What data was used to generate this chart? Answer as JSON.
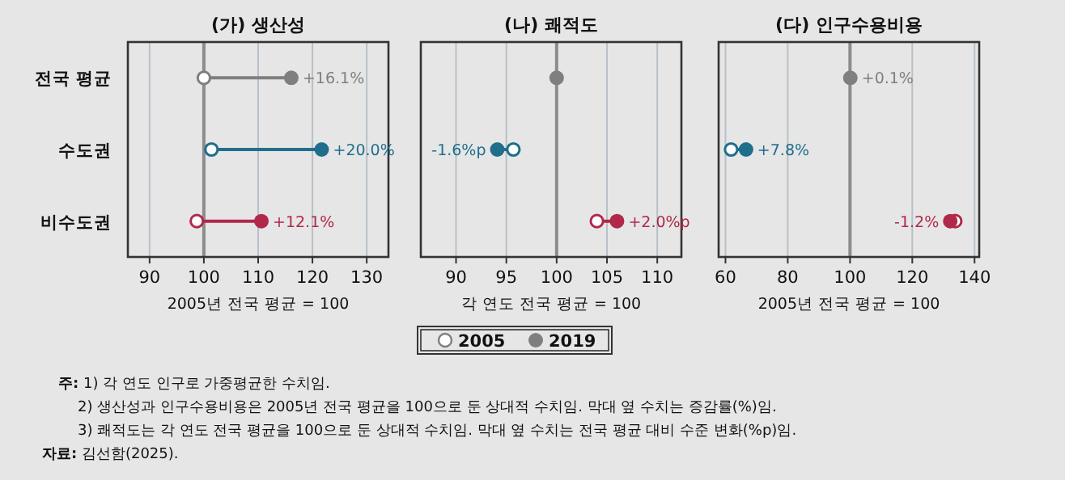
{
  "chart_data": [
    {
      "type": "scatter",
      "orientation": "horizontal",
      "title": "(가) 생산성",
      "xlabel": "2005년 전국 평균 = 100",
      "categories": [
        "전국 평균",
        "수도권",
        "비수도권"
      ],
      "xlim": [
        86,
        134
      ],
      "xticks": [
        90,
        100,
        110,
        120,
        130
      ],
      "grid": "x",
      "ref_lines": [
        {
          "axis": "x",
          "value": 100,
          "color": "#8c8c8c"
        }
      ],
      "series": [
        {
          "marker": "circle",
          "colors": [
            "#7f7f7f",
            "#1f6e8c",
            "#b0284a"
          ],
          "values": [
            100,
            101.4,
            98.7
          ]
        },
        {
          "marker": "circle",
          "colors": [
            "#7f7f7f",
            "#1f6e8c",
            "#b0284a"
          ],
          "values": [
            116.1,
            121.7,
            110.6
          ]
        }
      ],
      "annotations": [
        {
          "text": "+16.1%",
          "x": 116.1,
          "y": "전국 평균"
        },
        {
          "text": "+20.0%",
          "x": 121.7,
          "y": "수도권"
        },
        {
          "text": "+12.1%",
          "x": 110.6,
          "y": "비수도권"
        },
        "**주:** 1) 각 연도 인구로 가중평균한 수치임.",
        "2) 생산성과 인구수용비용은 2005년 전국 평균을 100으로 둔 상대적 수치임. 막대 옆 수치는 증감률(%)임.",
        "3) 쾌적도는 각 연도 전국 평균을 100으로 둔 상대적 수치임. 막대 옆 수치는 전국 평균 대비 수준 변화(%p)임.",
        "**자료:** 김선함(2025)."
      ]
    },
    {
      "type": "scatter",
      "orientation": "horizontal",
      "title": "(나) 쾌적도",
      "xlabel": "각 연도 전국 평균 = 100",
      "categories": [
        "전국 평균",
        "수도권",
        "비수도권"
      ],
      "xlim": [
        86.5,
        112.4
      ],
      "xticks": [
        90,
        95,
        100,
        105,
        110
      ],
      "grid": "x",
      "tick_labels": "x",
      "legend": "bottom",
      "ref_lines": [
        {
          "axis": "x",
          "value": 100,
          "color": "#8c8c8c"
        }
      ],
      "series": [
        {
          "name": "2005",
          "marker": "circle",
          "colors": [
            "#7f7f7f",
            "#1f6e8c",
            "#b0284a"
          ],
          "values": [
            null,
            95.7,
            104.0
          ]
        },
        {
          "name": "2019",
          "marker": "circle",
          "colors": [
            "#7f7f7f",
            "#1f6e8c",
            "#b0284a"
          ],
          "values": [
            100,
            94.1,
            106.0
          ]
        }
      ],
      "annotations": [
        {
          "text": "-1.6%p",
          "x": 94.1,
          "y": "수도권"
        },
        {
          "text": "+2.0%p",
          "x": 106.0,
          "y": "비수도권"
        }
      ]
    },
    {
      "type": "scatter",
      "orientation": "horizontal",
      "title": "(다) 인구수용비용",
      "xlabel": "2005년 전국 평균 = 100",
      "categories": [
        "전국 평균",
        "수도권",
        "비수도권"
      ],
      "xlim": [
        57.8,
        141.5
      ],
      "xticks": [
        60,
        80,
        100,
        120,
        140
      ],
      "grid": "x",
      "tick_labels": "x",
      "ref_lines": [
        {
          "axis": "x",
          "value": 100,
          "color": "#8c8c8c"
        }
      ],
      "series": [
        {
          "marker": "circle",
          "values": [
            null,
            61.8,
            133.8
          ],
          "colors": [
            null,
            "#1f6e8c",
            "#b0284a"
          ]
        },
        {
          "marker": "circle",
          "colors": [
            "#7f7f7f",
            "#1f6e8c",
            "#b0284a"
          ],
          "values": [
            100.1,
            66.6,
            132.2
          ]
        }
      ],
      "annotations": [
        {
          "text": "+0.1%",
          "x": 100.1,
          "y": "전국 평균"
        },
        {
          "text": "+7.8%",
          "x": 66.6,
          "y": "수도권"
        },
        {
          "text": "-1.2%",
          "x": 132.2,
          "y": "비수도권"
        }
      ]
    }
  ]
}
